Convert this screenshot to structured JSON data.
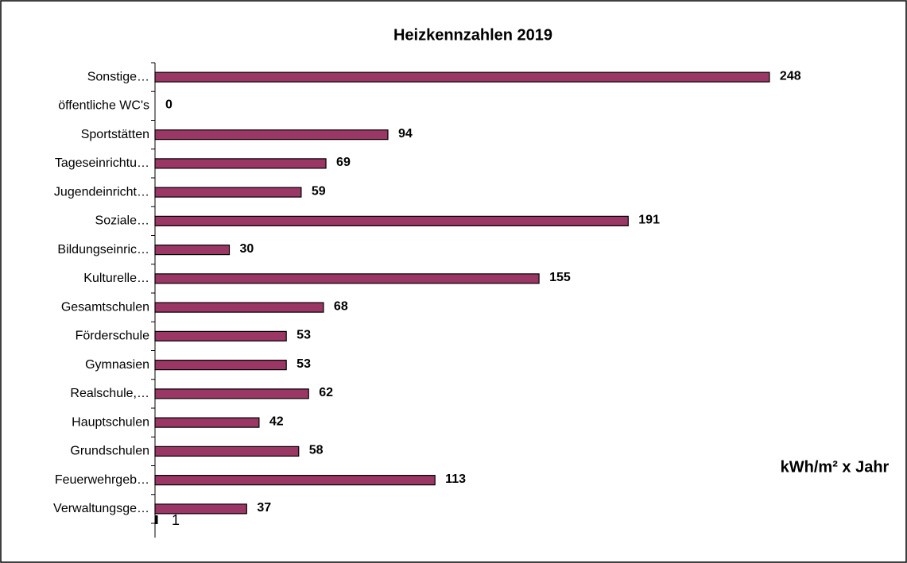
{
  "chart_data": {
    "type": "barh",
    "title": "Heizkennzahlen 2019",
    "categories": [
      "Sonstige…",
      "öffentliche WC's",
      "Sportstätten",
      "Tageseinrichtu…",
      "Jugendeinricht…",
      "Soziale…",
      "Bildungseinric…",
      "Kulturelle…",
      "Gesamtschulen",
      "Förderschule",
      "Gymnasien",
      "Realschule,…",
      "Hauptschulen",
      "Grundschulen",
      "Feuerwehrgeb…",
      "Verwaltungsge…"
    ],
    "values": [
      248,
      0,
      94,
      69,
      59,
      191,
      30,
      155,
      68,
      53,
      53,
      62,
      42,
      58,
      113,
      37
    ],
    "color": "#9b3764",
    "xlim": [
      0,
      300
    ],
    "x_axis_label": "kWh/m² x Jahr",
    "x_axis_stub": "1"
  }
}
